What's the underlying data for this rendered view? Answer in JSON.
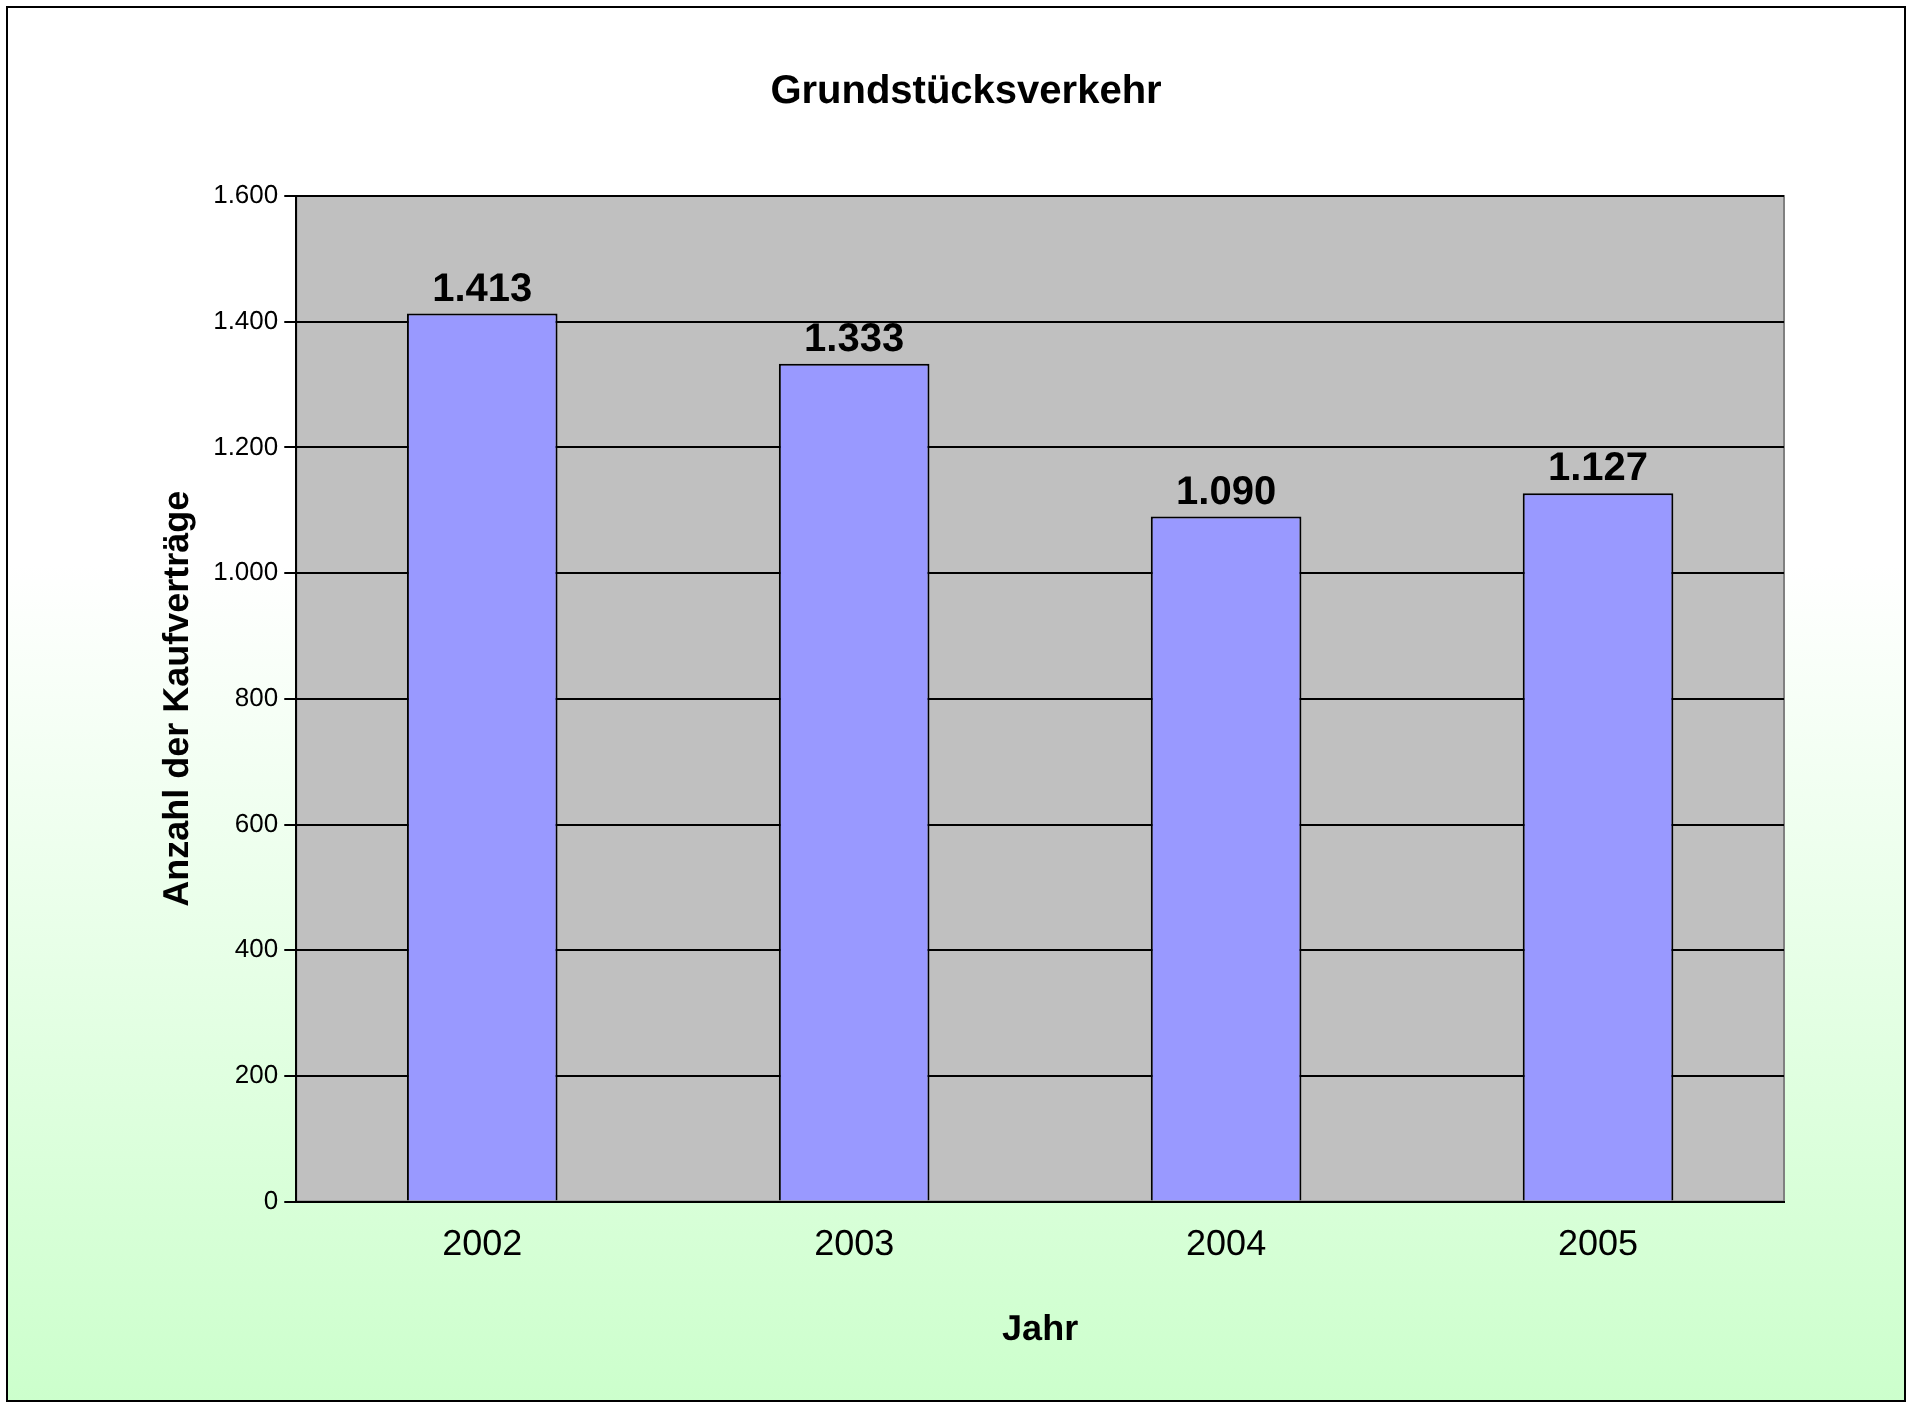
{
  "chart_data": {
    "type": "bar",
    "title": "Grundstücksverkehr",
    "xlabel": "Jahr",
    "ylabel": "Anzahl der Kaufverträge",
    "categories": [
      "2002",
      "2003",
      "2004",
      "2005"
    ],
    "values": [
      1413,
      1333,
      1090,
      1127
    ],
    "value_labels": [
      "1.413",
      "1.333",
      "1.090",
      "1.127"
    ],
    "color": "#9999ff",
    "ylim": [
      0,
      1600
    ],
    "yticks": [
      {
        "value": 0,
        "label": "0"
      },
      {
        "value": 200,
        "label": "200"
      },
      {
        "value": 400,
        "label": "400"
      },
      {
        "value": 600,
        "label": "600"
      },
      {
        "value": 800,
        "label": "800"
      },
      {
        "value": 1000,
        "label": "1.000"
      },
      {
        "value": 1200,
        "label": "1.200"
      },
      {
        "value": 1400,
        "label": "1.400"
      },
      {
        "value": 1600,
        "label": "1.600"
      }
    ],
    "grid": "y",
    "legend": false
  }
}
